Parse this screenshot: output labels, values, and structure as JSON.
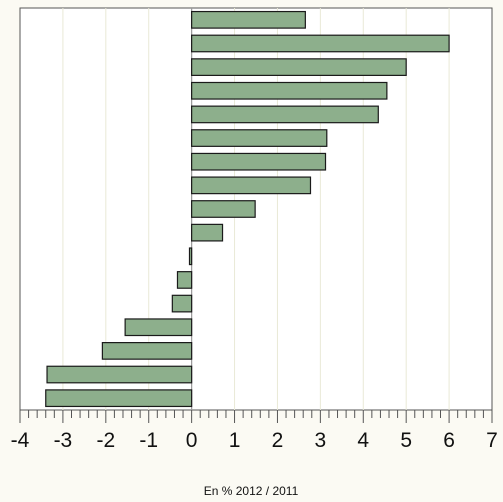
{
  "chart_data": {
    "type": "bar",
    "orientation": "horizontal",
    "categories": [
      "",
      "",
      "",
      "",
      "",
      "",
      "",
      "",
      "",
      "",
      "",
      "",
      "",
      "",
      "",
      "",
      ""
    ],
    "values": [
      2.65,
      6.0,
      5.0,
      4.55,
      4.35,
      3.15,
      3.12,
      2.77,
      1.48,
      0.72,
      -0.05,
      -0.33,
      -0.45,
      -1.55,
      -2.08,
      -3.37,
      -3.4
    ],
    "xlim": [
      -4,
      7
    ],
    "xticks": [
      "-4",
      "-3",
      "-2",
      "-1",
      "0",
      "1",
      "2",
      "3",
      "4",
      "5",
      "6",
      "7"
    ],
    "xlabel": "En % 2012 / 2011",
    "ylabel": "",
    "title": "",
    "grid": "vertical",
    "colors": {
      "bar_fill": "#8daf8c",
      "bar_stroke": "#1a1a1a",
      "background": "#fbfaf3",
      "plot_background": "#ffffff",
      "grid": "#e9e9d6",
      "zero_line": "#999999"
    }
  }
}
